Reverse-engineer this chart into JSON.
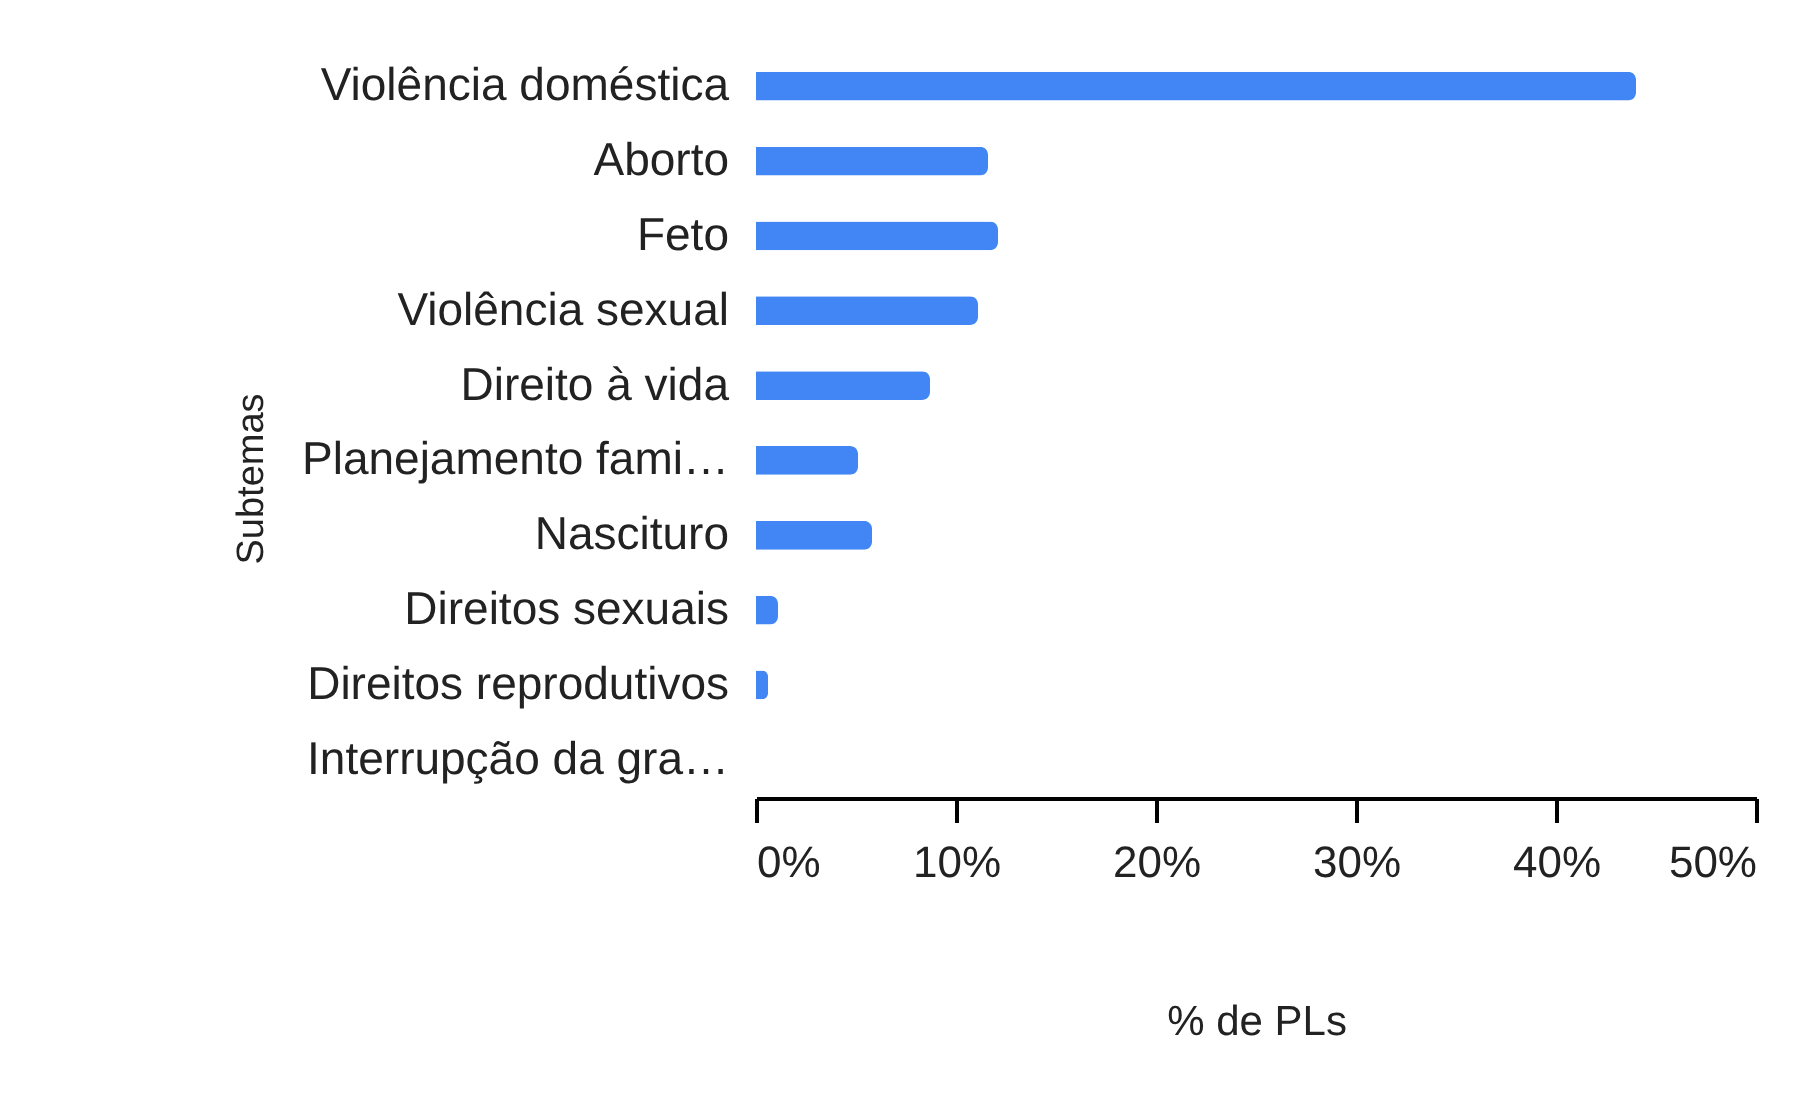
{
  "chart_data": {
    "type": "bar",
    "orientation": "horizontal",
    "xlabel": "% de PLs",
    "ylabel": "Subtemas",
    "categories": [
      "Violência doméstica",
      "Aborto",
      "Feto",
      "Violência sexual",
      "Direito à vida",
      "Planejamento fami…",
      "Nascituro",
      "Direitos sexuais",
      "Direitos reprodutivos",
      "Interrupção da gra…"
    ],
    "values": [
      44.0,
      11.6,
      12.1,
      11.1,
      8.7,
      5.1,
      5.8,
      1.1,
      0.6,
      0
    ],
    "color": "#4285f4",
    "xlim": [
      0,
      50
    ],
    "xticks": [
      {
        "value": 0,
        "label": "0%"
      },
      {
        "value": 10,
        "label": "10%"
      },
      {
        "value": 20,
        "label": "20%"
      },
      {
        "value": 30,
        "label": "30%"
      },
      {
        "value": 40,
        "label": "40%"
      },
      {
        "value": 50,
        "label": "50%"
      }
    ],
    "grid": false
  }
}
